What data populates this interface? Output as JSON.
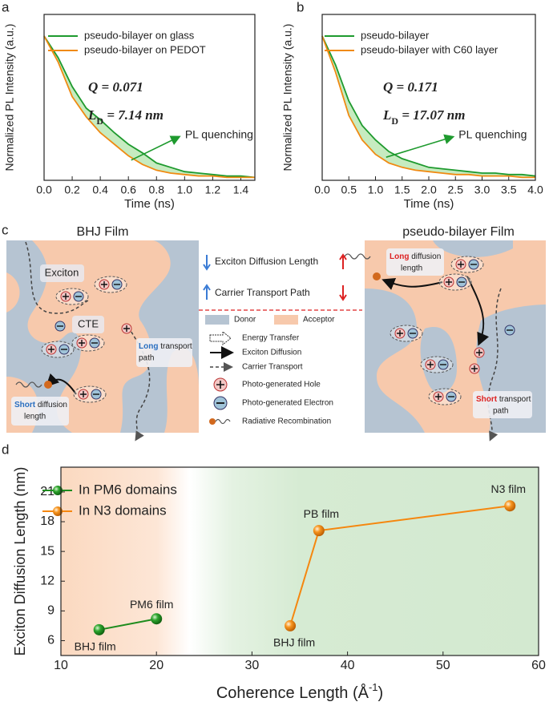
{
  "chart_data": [
    {
      "type": "line",
      "panel_label": "a",
      "x_label": "Time (ns)",
      "y_label": "Normalized PL Intensity (a.u.)",
      "x": [
        0,
        0.1,
        0.2,
        0.3,
        0.4,
        0.5,
        0.6,
        0.7,
        0.8,
        0.9,
        1.0,
        1.1,
        1.2,
        1.3,
        1.4,
        1.5
      ],
      "series": [
        {
          "name": "pseudo-bilayer on glass",
          "color": "#1e9a2e",
          "values": [
            1.0,
            0.85,
            0.65,
            0.5,
            0.42,
            0.33,
            0.25,
            0.19,
            0.12,
            0.09,
            0.06,
            0.05,
            0.04,
            0.03,
            0.03,
            0.02
          ]
        },
        {
          "name": "pseudo-bilayer on PEDOT",
          "color": "#f08a12",
          "values": [
            1.0,
            0.82,
            0.58,
            0.44,
            0.33,
            0.25,
            0.17,
            0.11,
            0.07,
            0.05,
            0.04,
            0.03,
            0.03,
            0.02,
            0.02,
            0.02
          ]
        }
      ],
      "shade_color": "#b8e6b0",
      "xlim": [
        0,
        1.5
      ],
      "ylim": [
        0,
        1.15
      ],
      "xticks": [
        {
          "value": 0,
          "label": "0.0"
        },
        {
          "value": 0.2,
          "label": "0.2"
        },
        {
          "value": 0.4,
          "label": "0.4"
        },
        {
          "value": 0.6,
          "label": "0.6"
        },
        {
          "value": 0.8,
          "label": "0.8"
        },
        {
          "value": 1.0,
          "label": "1.0"
        },
        {
          "value": 1.2,
          "label": "1.2"
        },
        {
          "value": 1.4,
          "label": "1.4"
        }
      ],
      "legend": "upper right",
      "q_text": "Q = 0.071",
      "ld_text": [
        "L",
        "D",
        " = 7.14 nm"
      ],
      "annotation": "PL quenching"
    },
    {
      "type": "line",
      "panel_label": "b",
      "x_label": "Time (ns)",
      "y_label": "Normalized PL Intensity (a.u.)",
      "x": [
        0,
        0.25,
        0.5,
        0.75,
        1.0,
        1.25,
        1.5,
        1.75,
        2.0,
        2.25,
        2.5,
        2.75,
        3.0,
        3.25,
        3.5,
        3.75,
        4.0
      ],
      "series": [
        {
          "name": "pseudo-bilayer",
          "color": "#1e9a2e",
          "values": [
            1.0,
            0.8,
            0.55,
            0.38,
            0.28,
            0.2,
            0.15,
            0.12,
            0.09,
            0.08,
            0.07,
            0.06,
            0.05,
            0.05,
            0.04,
            0.04,
            0.03
          ]
        },
        {
          "name": "pseudo-bilayer with C60 layer",
          "color": "#f08a12",
          "values": [
            1.0,
            0.75,
            0.45,
            0.28,
            0.18,
            0.12,
            0.09,
            0.07,
            0.06,
            0.05,
            0.04,
            0.04,
            0.03,
            0.03,
            0.03,
            0.02,
            0.02
          ]
        }
      ],
      "shade_color": "#b8e6b0",
      "xlim": [
        0,
        4
      ],
      "ylim": [
        0,
        1.15
      ],
      "xticks": [
        {
          "value": 0,
          "label": "0.0"
        },
        {
          "value": 0.5,
          "label": "0.5"
        },
        {
          "value": 1,
          "label": "1.0"
        },
        {
          "value": 1.5,
          "label": "1.5"
        },
        {
          "value": 2,
          "label": "2.0"
        },
        {
          "value": 2.5,
          "label": "2.5"
        },
        {
          "value": 3,
          "label": "3.0"
        },
        {
          "value": 3.5,
          "label": "3.5"
        },
        {
          "value": 4,
          "label": "4.0"
        }
      ],
      "legend": "upper right",
      "q_text": "Q = 0.171",
      "ld_text": [
        "L",
        "D",
        " = 17.07 nm"
      ],
      "annotation": "PL quenching"
    },
    {
      "type": "scatter-line",
      "panel_label": "d",
      "x_label": [
        "Coherence Length (Å",
        "-1",
        ")"
      ],
      "y_label": "Exciton Diffusion Length (nm)",
      "series": [
        {
          "name": "In PM6 domains",
          "color": "#1e8c1e",
          "x": [
            14,
            20
          ],
          "values": [
            7.1,
            8.2
          ],
          "point_labels": [
            "BHJ film",
            "PM6 film"
          ]
        },
        {
          "name": "In N3 domains",
          "color": "#f5870f",
          "x": [
            34,
            37,
            57
          ],
          "values": [
            7.5,
            17.1,
            19.6
          ],
          "point_labels": [
            "BHJ film",
            "PB film",
            "N3 film"
          ]
        }
      ],
      "xlim": [
        10,
        60
      ],
      "ylim": [
        4.5,
        23.5
      ],
      "xticks": [
        10,
        20,
        30,
        40,
        50,
        60
      ],
      "yticks": [
        6,
        9,
        12,
        15,
        18,
        21
      ],
      "legend": "upper left"
    }
  ],
  "diagram": {
    "panel_label": "c",
    "left_title": "BHJ Film",
    "right_title": "pseudo-bilayer Film",
    "exciton": "Exciton",
    "cte": "CTE",
    "left_long": [
      "Long",
      " transport",
      "path"
    ],
    "left_short": [
      "Short",
      " diffusion",
      "length"
    ],
    "right_long": [
      "Long",
      " diffusion",
      "length"
    ],
    "right_short": [
      "Short",
      " transport",
      "path"
    ],
    "trend_1": "Exciton Diffusion Length",
    "trend_2": "Carrier Transport Path",
    "legend": {
      "donor": "Donor",
      "acceptor": "Acceptor",
      "energy": "Energy Transfer",
      "diffusion": "Exciton Diffusion",
      "transport": "Carrier Transport",
      "hole": "Photo-generated Hole",
      "electron": "Photo-generated Electron",
      "radiative": "Radiative Recombination"
    }
  }
}
